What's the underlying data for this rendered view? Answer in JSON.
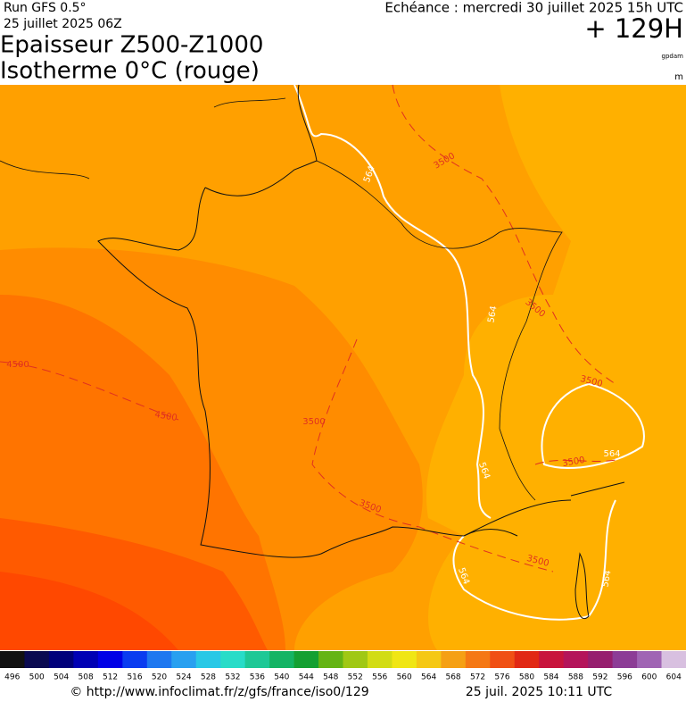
{
  "header": {
    "run": "Run GFS 0.5°",
    "run_date": "25 juillet 2025 06Z",
    "title_line1": "Epaisseur Z500-Z1000",
    "title_line2": "Isotherme 0°C (rouge)",
    "valid_time": "Echéance : mercredi 30 juillet 2025 15h UTC",
    "lead": "+ 129H",
    "unit_thickness": "gpdam",
    "unit_iso": "m"
  },
  "map": {
    "contour_labels": [
      "3500",
      "564",
      "564",
      "3500",
      "4500",
      "4500",
      "3500",
      "3500",
      "3500",
      "564",
      "564",
      "3500",
      "3500",
      "564",
      "564"
    ]
  },
  "colorbar": {
    "labels": [
      496,
      500,
      504,
      508,
      512,
      516,
      520,
      524,
      528,
      532,
      536,
      540,
      544,
      548,
      552,
      556,
      560,
      564,
      568,
      572,
      576,
      580,
      584,
      588,
      592,
      596,
      600,
      604
    ],
    "colors": [
      "#111111",
      "#0a0a50",
      "#00007a",
      "#0000b4",
      "#0000e6",
      "#0a3cf0",
      "#1e78f0",
      "#28a0f0",
      "#28c8e6",
      "#28dcc8",
      "#1ec896",
      "#14b464",
      "#14a032",
      "#64b414",
      "#a0c814",
      "#d2dc14",
      "#f0e614",
      "#f5c814",
      "#f5a014",
      "#f57814",
      "#f05014",
      "#e12814",
      "#c8143c",
      "#b4145a",
      "#961e6e",
      "#8c3c96",
      "#a064b4",
      "#d8c0e0"
    ]
  },
  "footer": {
    "url": "© http://www.infoclimat.fr/z/gfs/france/iso0/129",
    "generated": "25 juil. 2025 10:11 UTC"
  }
}
